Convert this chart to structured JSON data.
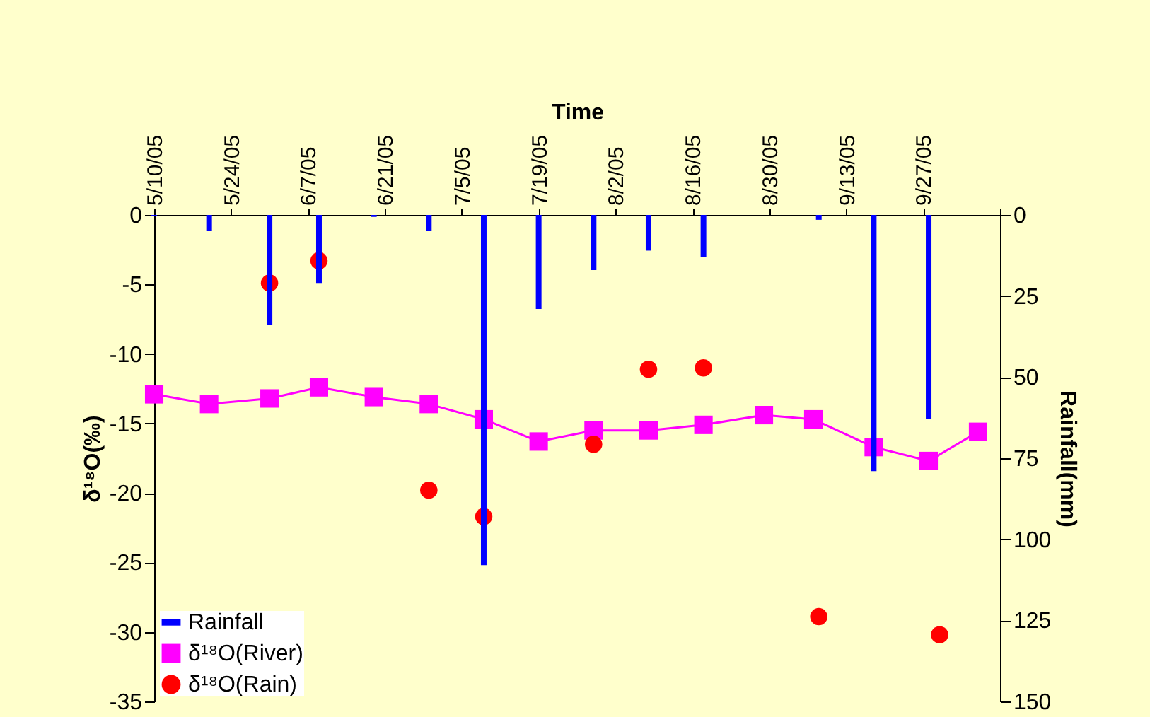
{
  "chart_data": {
    "type": "line",
    "xlabel": "Time",
    "ylabel": "δ¹⁸O(‰)",
    "y2label": "Rainfall(mm)",
    "xlim": [
      "--05-10",
      "--10-11"
    ],
    "xticks": [
      {
        "value": "--05-10",
        "label": "5/10/05"
      },
      {
        "value": "--05-24",
        "label": "5/24/05"
      },
      {
        "value": "--06-07",
        "label": "6/7/05"
      },
      {
        "value": "--06-21",
        "label": "6/21/05"
      },
      {
        "value": "--07-05",
        "label": "7/5/05"
      },
      {
        "value": "--07-19",
        "label": "7/19/05"
      },
      {
        "value": "--08-02",
        "label": "8/2/05"
      },
      {
        "value": "--08-16",
        "label": "8/16/05"
      },
      {
        "value": "--08-30",
        "label": "8/30/05"
      },
      {
        "value": "--09-13",
        "label": "9/13/05"
      },
      {
        "value": "--09-27",
        "label": "9/27/05"
      },
      {
        "value": "--10-11",
        "label": null
      }
    ],
    "ylim": [
      -35,
      0
    ],
    "yticks": [
      -35,
      -30,
      -25,
      -20,
      -15,
      -10,
      -5,
      0
    ],
    "y2lim": [
      150,
      0
    ],
    "y2ticks": [
      0,
      25,
      50,
      75,
      100,
      125,
      150
    ],
    "grid": false,
    "legend": "bottom left",
    "line_style": "solid",
    "series": [
      {
        "name": "Rainfall",
        "type": "bar",
        "axis": "y2",
        "color": "#0000ff",
        "x": [
          "--05-10",
          "--05-20",
          "--05-31",
          "--06-09",
          "--06-19",
          "--06-29",
          "--07-09",
          "--07-19",
          "--07-29",
          "--08-08",
          "--08-18",
          "--09-08",
          "--09-18",
          "--09-28"
        ],
        "values": [
          0.3,
          5,
          34,
          21,
          0.6,
          5,
          108,
          29,
          17,
          11,
          13,
          1.5,
          79,
          63
        ]
      },
      {
        "name": "δ¹⁸O(River)",
        "marker": "square",
        "color": "#ff00ff",
        "x": [
          "--05-10",
          "--05-20",
          "--05-31",
          "--06-09",
          "--06-19",
          "--06-29",
          "--07-09",
          "--07-19",
          "--07-29",
          "--08-08",
          "--08-18",
          "--08-29",
          "--09-07",
          "--09-18",
          "--09-28",
          "--10-07"
        ],
        "values": [
          -12.9,
          -13.6,
          -13.2,
          -12.4,
          -13.1,
          -13.6,
          -14.7,
          -16.3,
          -15.5,
          -15.5,
          -15.1,
          -14.4,
          -14.7,
          -16.7,
          -17.7,
          -15.6
        ]
      },
      {
        "name": "δ¹⁸O(Rain)",
        "type": "scatter",
        "marker": "circle",
        "color": "#ff0000",
        "x": [
          "--05-31",
          "--06-09",
          "--06-29",
          "--07-09",
          "--07-29",
          "--08-08",
          "--08-18",
          "--09-08",
          "--09-30"
        ],
        "values": [
          -4.9,
          -3.3,
          -19.8,
          -21.7,
          -16.5,
          -11.1,
          -11.0,
          -28.9,
          -30.2
        ]
      }
    ]
  }
}
